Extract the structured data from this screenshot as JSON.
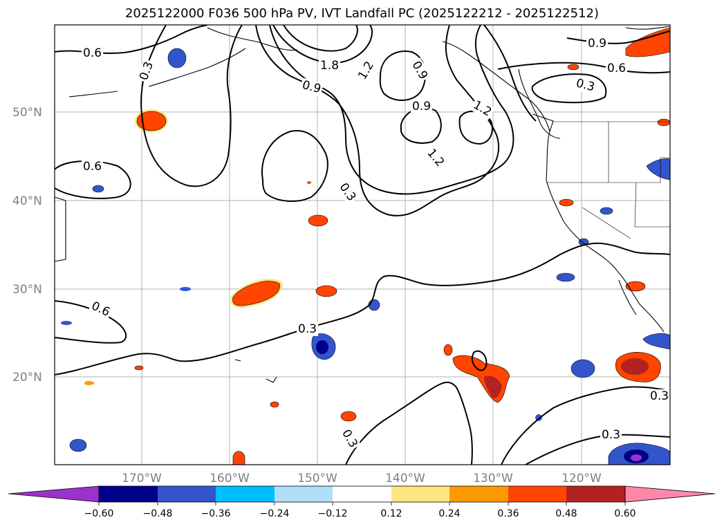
{
  "title": "2025122000 F036 500 hPa PV, IVT Landfall PC (2025122212 - 2025122512)",
  "axes": {
    "lon_labels": [
      "170°W",
      "160°W",
      "150°W",
      "140°W",
      "130°W",
      "120°W"
    ],
    "lat_labels": [
      "50°N",
      "40°N",
      "30°N",
      "20°N"
    ]
  },
  "contour_labels": [
    "0.6",
    "0.3",
    "1.8",
    "1.2",
    "0.9",
    "0.9",
    "0.9",
    "1.2",
    "1.2",
    "0.3",
    "0.6",
    "0.9",
    "0.6",
    "0.3",
    "0.6",
    "0.3",
    "0.3",
    "0.3",
    "0.3"
  ],
  "colorbar": {
    "ticks": [
      "−0.60",
      "−0.48",
      "−0.36",
      "−0.24",
      "−0.12",
      "0.12",
      "0.24",
      "0.36",
      "0.48",
      "0.60"
    ],
    "colors": [
      "#9933cc",
      "#00008b",
      "#3355cc",
      "#00bfff",
      "#b0e0f8",
      "#ffffff",
      "#ffe680",
      "#ff9900",
      "#ff4500",
      "#b22222",
      "#ff88aa"
    ]
  }
}
